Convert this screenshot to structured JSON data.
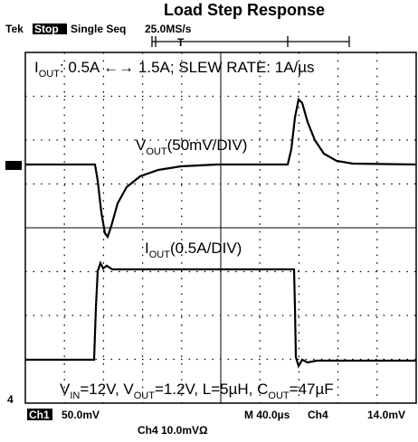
{
  "header": {
    "title": "Load Step Response",
    "brand": "Tek",
    "state": "Stop",
    "mode": "Single Seq",
    "rate": "25.0MS/s",
    "trigger": "T"
  },
  "annotations": {
    "iout_range": {
      "sym": "I",
      "sub": "OUT",
      "rest": ": 0.5A ←→ 1.5A;  SLEW RATE: 1A/µs"
    },
    "vout_label": {
      "sym": "V",
      "sub": "OUT",
      "rest": "(50mV/DIV)"
    },
    "iout_label": {
      "sym": "I",
      "sub": "OUT",
      "rest": "(0.5A/DIV)"
    },
    "conditions": {
      "p1": "V",
      "s1": "IN",
      "p2": "=12V, V",
      "s2": "OUT",
      "p3": "=1.2V, L=5µH, C",
      "s3": "OUT",
      "p4": "=47µF"
    }
  },
  "footer": {
    "ch1": "Ch1",
    "ch1_scale": "50.0mV",
    "ch4_scale": "Ch4  10.0mVΩ",
    "timebase": "M 40.0µs",
    "trig_src": "Ch4",
    "trig_level": "14.0mV",
    "ch4_marker": "4"
  }
}
